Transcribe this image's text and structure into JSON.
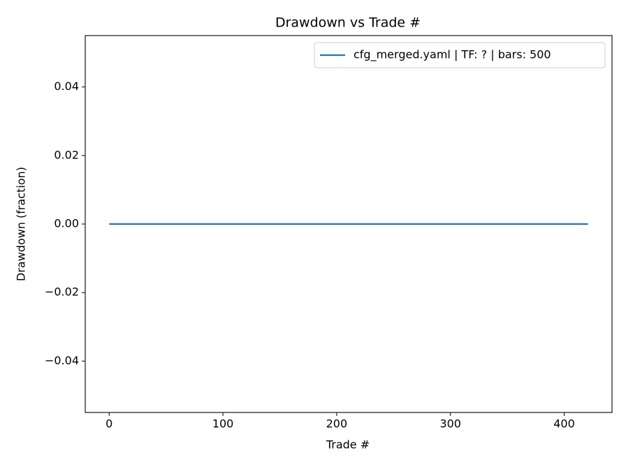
{
  "chart_data": {
    "type": "line",
    "title": "Drawdown vs Trade #",
    "xlabel": "Trade #",
    "ylabel": "Drawdown (fraction)",
    "x": [
      0,
      421
    ],
    "series": [
      {
        "name": "cfg_merged.yaml | TF: ? | bars: 500",
        "color": "#1f77b4",
        "values": [
          0,
          0
        ]
      }
    ],
    "xlim": [
      -21.05,
      442.05
    ],
    "xticks": [
      0,
      100,
      200,
      300,
      400
    ],
    "ylim": [
      -0.055,
      0.055
    ],
    "yticks": [
      {
        "value": -0.04,
        "label": "−0.04"
      },
      {
        "value": -0.02,
        "label": "−0.02"
      },
      {
        "value": 0,
        "label": "0.00"
      },
      0.02,
      0.04
    ],
    "legend": "upper right",
    "grid": false
  }
}
